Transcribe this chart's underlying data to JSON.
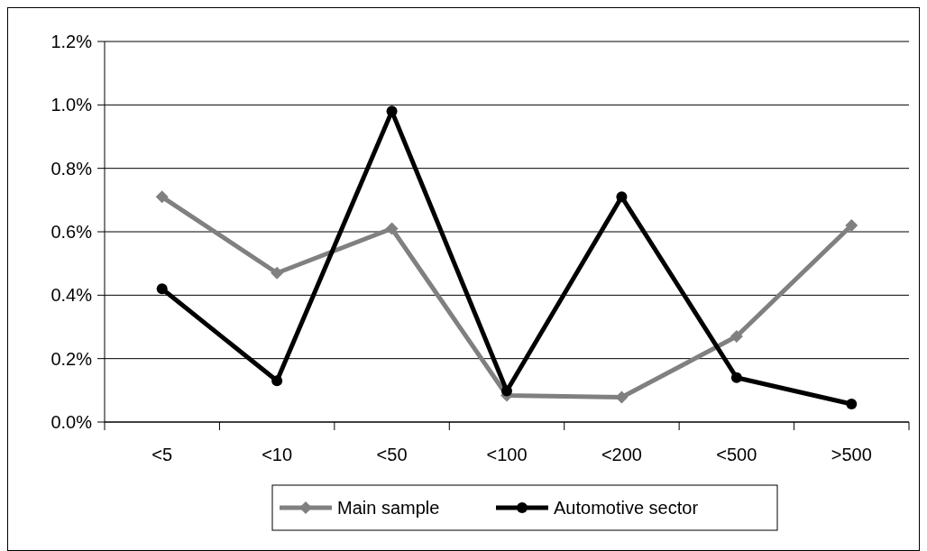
{
  "chart_data": {
    "type": "line",
    "categories": [
      "<5",
      "<10",
      "<50",
      "<100",
      "<200",
      "<500",
      ">500"
    ],
    "series": [
      {
        "name": "Main sample",
        "color": "#808080",
        "marker": "diamond",
        "values": [
          0.71,
          0.47,
          0.61,
          0.084,
          0.078,
          0.27,
          0.62
        ]
      },
      {
        "name": "Automotive sector",
        "color": "#000000",
        "marker": "circle",
        "values": [
          0.42,
          0.13,
          0.98,
          0.098,
          0.71,
          0.14,
          0.057
        ]
      }
    ],
    "ylim": [
      0,
      1.2
    ],
    "yticks": [
      {
        "value": 0,
        "label": "0.0%"
      },
      {
        "value": 0.2,
        "label": "0.2%"
      },
      {
        "value": 0.4,
        "label": "0.4%"
      },
      {
        "value": 0.6,
        "label": "0.6%"
      },
      {
        "value": 0.8,
        "label": "0.8%"
      },
      {
        "value": 1.0,
        "label": "1.0%"
      },
      {
        "value": 1.2,
        "label": "1.2%"
      }
    ],
    "grid": "y",
    "legend": "bottom",
    "line_style": "solid"
  }
}
